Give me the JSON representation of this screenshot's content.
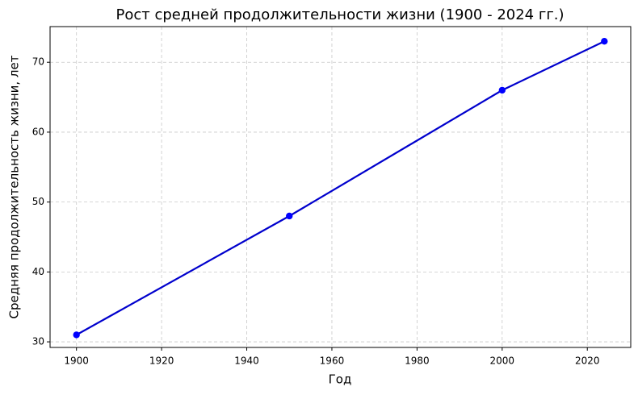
{
  "chart_data": {
    "type": "line",
    "title": "Рост средней продолжительности жизни (1900 - 2024 гг.)",
    "x_label": "Год",
    "y_label": "Средняя продолжительность жизни, лет",
    "x": [
      1900,
      1950,
      2000,
      2024
    ],
    "series": [
      {
        "name": "Средняя продолжительность жизни",
        "color": "#0000cd",
        "marker_color": "#0000ff",
        "values": [
          31,
          48,
          66,
          73
        ]
      }
    ],
    "xlim": [
      1893.8,
      2030.2
    ],
    "xticks": [
      1900,
      1920,
      1940,
      1960,
      1980,
      2000,
      2020
    ],
    "ylim": [
      29.2,
      75.1
    ],
    "yticks": [
      30,
      40,
      50,
      60,
      70
    ],
    "grid": true
  }
}
